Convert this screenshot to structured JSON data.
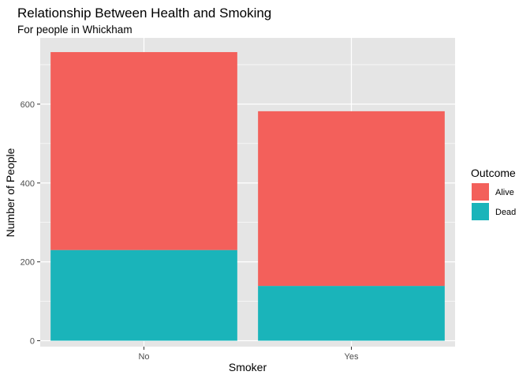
{
  "chart_data": {
    "type": "bar",
    "stacked": true,
    "title": "Relationship Between Health and Smoking",
    "subtitle": "For people in Whickham",
    "xlabel": "Smoker",
    "ylabel": "Number of People",
    "categories": [
      "No",
      "Yes"
    ],
    "series": [
      {
        "name": "Dead",
        "values": [
          230,
          139
        ],
        "color": "#1AB4BA"
      },
      {
        "name": "Alive",
        "values": [
          502,
          443
        ],
        "color": "#F3605B"
      }
    ],
    "ylim": [
      -15,
      768
    ],
    "yticks": [
      0,
      200,
      400,
      600
    ],
    "ytick_labels": [
      "0",
      "200",
      "400",
      "600"
    ],
    "grid": true,
    "legend": {
      "title": "Outcome",
      "placement": "right",
      "entries": [
        {
          "label": "Alive",
          "color": "#F3605B"
        },
        {
          "label": "Dead",
          "color": "#1AB4BA"
        }
      ]
    },
    "panel_color": "#E5E5E5",
    "grid_color": "#FFFFFF"
  }
}
